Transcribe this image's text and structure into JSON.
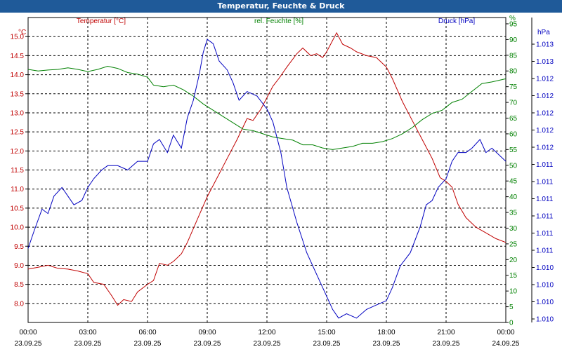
{
  "window": {
    "title": "Temperatur, Feuchte & Druck"
  },
  "chart_data": {
    "type": "line",
    "title": "Temperatur, Feuchte & Druck",
    "x_ticks": [
      {
        "time": "00:00",
        "date": "23.09.25"
      },
      {
        "time": "03:00",
        "date": "23.09.25"
      },
      {
        "time": "06:00",
        "date": "23.09.25"
      },
      {
        "time": "09:00",
        "date": "23.09.25"
      },
      {
        "time": "12:00",
        "date": "23.09.25"
      },
      {
        "time": "15:00",
        "date": "23.09.25"
      },
      {
        "time": "18:00",
        "date": "23.09.25"
      },
      {
        "time": "21:00",
        "date": "23.09.25"
      },
      {
        "time": "00:00",
        "date": "24.09.25"
      }
    ],
    "xlim_hours": [
      0,
      24
    ],
    "grid": true,
    "axes": {
      "temperature": {
        "unit": "°C",
        "ylim": [
          7.5,
          15.5
        ],
        "ticks": [
          "8.0",
          "8.5",
          "9.0",
          "9.5",
          "10.0",
          "10.5",
          "11.0",
          "11.5",
          "12.0",
          "12.5",
          "13.0",
          "13.5",
          "14.0",
          "14.5",
          "15.0"
        ],
        "color": "#c00000"
      },
      "humidity": {
        "unit": "%",
        "ylim": [
          0,
          97
        ],
        "ticks": [
          "0",
          "5",
          "10",
          "15",
          "20",
          "25",
          "30",
          "35",
          "40",
          "45",
          "50",
          "55",
          "60",
          "65",
          "70",
          "75",
          "80",
          "85",
          "90",
          "95"
        ],
        "color": "#008000"
      },
      "pressure": {
        "unit": "hPa",
        "ylim": [
          1010.0,
          1013.5
        ],
        "ticks": [
          "1.010",
          "1.010",
          "1.010",
          "1.010",
          "1.011",
          "1.011",
          "1.011",
          "1.011",
          "1.011",
          "1.011",
          "1.012",
          "1.012",
          "1.012",
          "1.012",
          "1.012",
          "1.013",
          "1.013"
        ],
        "color": "#0000c0"
      }
    },
    "series": [
      {
        "name": "Temperatur [°C]",
        "axis": "temperature",
        "color": "#c00000",
        "points": [
          [
            0,
            8.9
          ],
          [
            0.5,
            8.95
          ],
          [
            1,
            9.0
          ],
          [
            1.5,
            8.92
          ],
          [
            2,
            8.9
          ],
          [
            2.5,
            8.85
          ],
          [
            3,
            8.78
          ],
          [
            3.3,
            8.55
          ],
          [
            3.8,
            8.5
          ],
          [
            4.2,
            8.2
          ],
          [
            4.5,
            7.95
          ],
          [
            4.8,
            8.1
          ],
          [
            5.2,
            8.05
          ],
          [
            5.5,
            8.3
          ],
          [
            6,
            8.5
          ],
          [
            6.3,
            8.6
          ],
          [
            6.6,
            9.05
          ],
          [
            7,
            9.0
          ],
          [
            7.3,
            9.1
          ],
          [
            7.7,
            9.3
          ],
          [
            8,
            9.6
          ],
          [
            8.5,
            10.2
          ],
          [
            9,
            10.8
          ],
          [
            9.5,
            11.3
          ],
          [
            10,
            11.8
          ],
          [
            10.5,
            12.3
          ],
          [
            11,
            12.85
          ],
          [
            11.3,
            12.8
          ],
          [
            11.7,
            13.1
          ],
          [
            12,
            13.4
          ],
          [
            12.3,
            13.7
          ],
          [
            12.6,
            13.9
          ],
          [
            13,
            14.2
          ],
          [
            13.5,
            14.55
          ],
          [
            13.8,
            14.7
          ],
          [
            14.2,
            14.5
          ],
          [
            14.5,
            14.55
          ],
          [
            14.8,
            14.45
          ],
          [
            15,
            14.6
          ],
          [
            15.3,
            14.9
          ],
          [
            15.5,
            15.1
          ],
          [
            15.8,
            14.8
          ],
          [
            16.2,
            14.7
          ],
          [
            16.5,
            14.6
          ],
          [
            17,
            14.5
          ],
          [
            17.5,
            14.45
          ],
          [
            18,
            14.2
          ],
          [
            18.3,
            13.9
          ],
          [
            18.8,
            13.3
          ],
          [
            19.3,
            12.8
          ],
          [
            19.8,
            12.3
          ],
          [
            20.3,
            11.8
          ],
          [
            20.7,
            11.3
          ],
          [
            21,
            11.2
          ],
          [
            21.3,
            11.05
          ],
          [
            21.6,
            10.6
          ],
          [
            22,
            10.25
          ],
          [
            22.5,
            10.0
          ],
          [
            23,
            9.85
          ],
          [
            23.5,
            9.7
          ],
          [
            24,
            9.6
          ]
        ]
      },
      {
        "name": "rel. Feuchte [%]",
        "axis": "humidity",
        "color": "#008000",
        "points": [
          [
            0,
            80.5
          ],
          [
            0.5,
            80
          ],
          [
            1,
            80.3
          ],
          [
            1.5,
            80.5
          ],
          [
            2,
            81
          ],
          [
            2.5,
            80.5
          ],
          [
            3,
            79.8
          ],
          [
            3.5,
            80.5
          ],
          [
            4,
            81.5
          ],
          [
            4.5,
            80.8
          ],
          [
            5,
            79.5
          ],
          [
            5.5,
            79
          ],
          [
            6,
            78
          ],
          [
            6.3,
            75.5
          ],
          [
            6.8,
            75
          ],
          [
            7.3,
            75.5
          ],
          [
            7.8,
            74
          ],
          [
            8.3,
            72
          ],
          [
            8.8,
            69.5
          ],
          [
            9.3,
            67.5
          ],
          [
            9.8,
            65.5
          ],
          [
            10.3,
            63.5
          ],
          [
            10.8,
            61.5
          ],
          [
            11.3,
            61
          ],
          [
            11.8,
            60
          ],
          [
            12.3,
            59
          ],
          [
            12.8,
            58.5
          ],
          [
            13.3,
            58
          ],
          [
            13.8,
            56.5
          ],
          [
            14.3,
            56.5
          ],
          [
            14.8,
            55.5
          ],
          [
            15.3,
            55
          ],
          [
            15.8,
            55.5
          ],
          [
            16.3,
            56
          ],
          [
            16.8,
            57
          ],
          [
            17.3,
            57
          ],
          [
            17.8,
            57.5
          ],
          [
            18.3,
            58.5
          ],
          [
            18.8,
            60
          ],
          [
            19.3,
            62
          ],
          [
            19.8,
            64.5
          ],
          [
            20.3,
            66.5
          ],
          [
            20.8,
            67.5
          ],
          [
            21.3,
            70
          ],
          [
            21.8,
            71
          ],
          [
            22.3,
            73.5
          ],
          [
            22.8,
            76
          ],
          [
            23.3,
            76.5
          ],
          [
            24,
            77.5
          ]
        ]
      },
      {
        "name": "Druck [hPa]",
        "axis": "pressure",
        "color": "#0000c0",
        "points": [
          [
            0,
            1010.85
          ],
          [
            0.3,
            1011.05
          ],
          [
            0.7,
            1011.3
          ],
          [
            1,
            1011.25
          ],
          [
            1.3,
            1011.45
          ],
          [
            1.7,
            1011.55
          ],
          [
            2,
            1011.45
          ],
          [
            2.3,
            1011.35
          ],
          [
            2.7,
            1011.4
          ],
          [
            3,
            1011.55
          ],
          [
            3.3,
            1011.65
          ],
          [
            3.7,
            1011.75
          ],
          [
            4,
            1011.8
          ],
          [
            4.5,
            1011.8
          ],
          [
            5,
            1011.75
          ],
          [
            5.5,
            1011.85
          ],
          [
            6,
            1011.85
          ],
          [
            6.3,
            1012.05
          ],
          [
            6.6,
            1012.1
          ],
          [
            7,
            1011.95
          ],
          [
            7.3,
            1012.15
          ],
          [
            7.7,
            1012.0
          ],
          [
            8,
            1012.35
          ],
          [
            8.3,
            1012.55
          ],
          [
            8.6,
            1012.85
          ],
          [
            8.8,
            1013.1
          ],
          [
            9.0,
            1013.25
          ],
          [
            9.3,
            1013.2
          ],
          [
            9.6,
            1013.0
          ],
          [
            10,
            1012.9
          ],
          [
            10.3,
            1012.75
          ],
          [
            10.6,
            1012.55
          ],
          [
            11,
            1012.65
          ],
          [
            11.5,
            1012.6
          ],
          [
            12,
            1012.45
          ],
          [
            12.3,
            1012.3
          ],
          [
            12.7,
            1011.95
          ],
          [
            13,
            1011.55
          ],
          [
            13.5,
            1011.15
          ],
          [
            14,
            1010.8
          ],
          [
            14.5,
            1010.55
          ],
          [
            15,
            1010.3
          ],
          [
            15.3,
            1010.15
          ],
          [
            15.6,
            1010.05
          ],
          [
            16,
            1010.1
          ],
          [
            16.5,
            1010.05
          ],
          [
            17,
            1010.15
          ],
          [
            17.5,
            1010.2
          ],
          [
            18,
            1010.25
          ],
          [
            18.3,
            1010.4
          ],
          [
            18.7,
            1010.65
          ],
          [
            19.2,
            1010.8
          ],
          [
            19.7,
            1011.1
          ],
          [
            20,
            1011.35
          ],
          [
            20.3,
            1011.4
          ],
          [
            20.6,
            1011.55
          ],
          [
            21,
            1011.65
          ],
          [
            21.3,
            1011.85
          ],
          [
            21.6,
            1011.95
          ],
          [
            22,
            1011.95
          ],
          [
            22.3,
            1012.0
          ],
          [
            22.7,
            1012.1
          ],
          [
            23,
            1011.95
          ],
          [
            23.3,
            1012.0
          ],
          [
            24,
            1011.85
          ]
        ]
      }
    ]
  }
}
